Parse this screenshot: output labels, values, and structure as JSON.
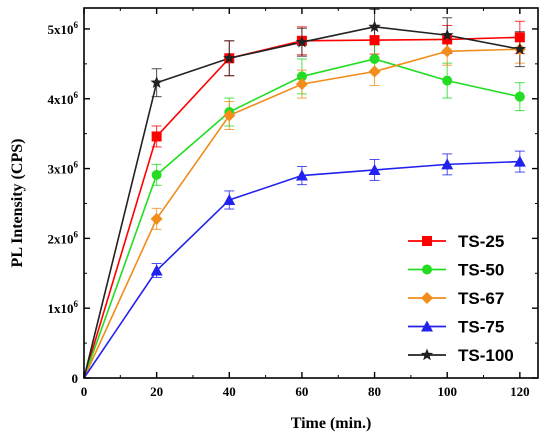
{
  "chart_data": {
    "type": "line",
    "xlabel": "Time (min.)",
    "ylabel": "PL Intensity (CPS)",
    "xlim": [
      0,
      125
    ],
    "ylim": [
      0,
      5300000
    ],
    "x_ticks": [
      "0",
      "20",
      "40",
      "60",
      "80",
      "100",
      "120"
    ],
    "y_ticks": [
      {
        "value": 0,
        "mantissa": "0",
        "exp": ""
      },
      {
        "value": 1000000,
        "mantissa": "1x10",
        "exp": "6"
      },
      {
        "value": 2000000,
        "mantissa": "2x10",
        "exp": "6"
      },
      {
        "value": 3000000,
        "mantissa": "3x10",
        "exp": "6"
      },
      {
        "value": 4000000,
        "mantissa": "4x10",
        "exp": "6"
      },
      {
        "value": 5000000,
        "mantissa": "5x10",
        "exp": "6"
      }
    ],
    "legend_position": "bottom-right",
    "x": [
      0,
      20,
      40,
      60,
      80,
      100,
      120
    ],
    "series": [
      {
        "name": "TS-25",
        "color": "#ff0000",
        "marker": "square",
        "values": [
          0,
          3460000,
          4580000,
          4830000,
          4840000,
          4850000,
          4880000
        ],
        "errors": [
          0,
          150000,
          250000,
          200000,
          200000,
          200000,
          230000
        ]
      },
      {
        "name": "TS-50",
        "color": "#22dd22",
        "marker": "circle",
        "values": [
          0,
          2910000,
          3810000,
          4320000,
          4570000,
          4260000,
          4030000
        ],
        "errors": [
          0,
          150000,
          200000,
          250000,
          200000,
          250000,
          200000
        ]
      },
      {
        "name": "TS-67",
        "color": "#f28c1a",
        "marker": "diamond",
        "values": [
          0,
          2280000,
          3760000,
          4210000,
          4390000,
          4680000,
          4710000
        ],
        "errors": [
          0,
          150000,
          200000,
          200000,
          200000,
          200000,
          200000
        ]
      },
      {
        "name": "TS-75",
        "color": "#2222ee",
        "marker": "triangle",
        "values": [
          0,
          1540000,
          2550000,
          2900000,
          2980000,
          3060000,
          3100000
        ],
        "errors": [
          0,
          100000,
          130000,
          130000,
          150000,
          150000,
          150000
        ]
      },
      {
        "name": "TS-100",
        "color": "#222222",
        "marker": "star",
        "values": [
          0,
          4230000,
          4580000,
          4810000,
          5030000,
          4910000,
          4710000
        ],
        "errors": [
          0,
          200000,
          250000,
          200000,
          250000,
          250000,
          250000
        ]
      }
    ]
  }
}
